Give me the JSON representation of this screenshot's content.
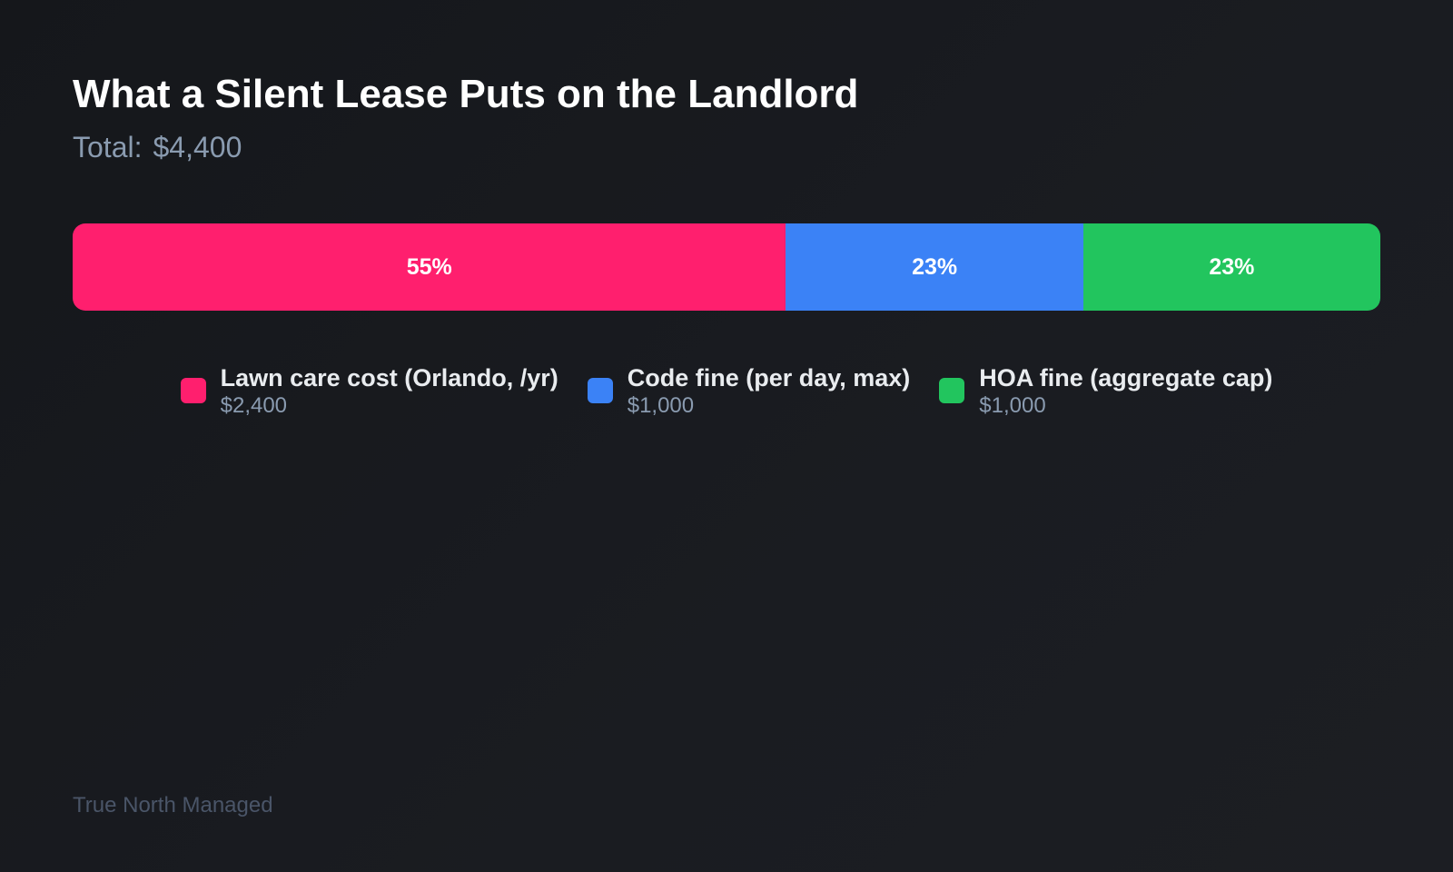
{
  "chart_data": {
    "type": "bar",
    "orientation": "horizontal-stacked",
    "title": "What a Silent Lease Puts on the Landlord",
    "subtitle_label": "Total:",
    "subtitle_value": "$4,400",
    "total": 4400,
    "legend_position": "bottom",
    "grid": false,
    "series": [
      {
        "name": "Lawn care cost (Orlando, /yr)",
        "value": 2400,
        "value_label": "$2,400",
        "percent_label": "55%",
        "color": "#ff1f6e"
      },
      {
        "name": "Code fine (per day, max)",
        "value": 1000,
        "value_label": "$1,000",
        "percent_label": "23%",
        "color": "#3b82f6"
      },
      {
        "name": "HOA fine (aggregate cap)",
        "value": 1000,
        "value_label": "$1,000",
        "percent_label": "23%",
        "color": "#22c55e"
      }
    ]
  },
  "footer": "True North Managed"
}
